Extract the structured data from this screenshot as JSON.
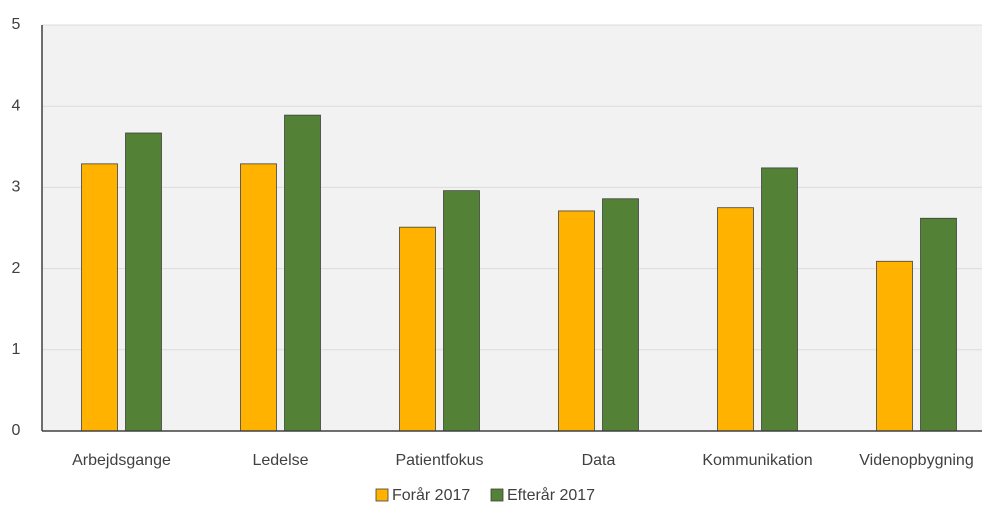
{
  "chart_data": {
    "type": "bar",
    "categories": [
      "Arbejdsgange",
      "Ledelse",
      "Patientfokus",
      "Data",
      "Kommunikation",
      "Videnopbygning"
    ],
    "series": [
      {
        "name": "Forår 2017",
        "color": "#ffb300",
        "values": [
          3.29,
          3.29,
          2.51,
          2.71,
          2.75,
          2.09
        ]
      },
      {
        "name": "Efterår 2017",
        "color": "#538135",
        "values": [
          3.67,
          3.89,
          2.96,
          2.86,
          3.24,
          2.62
        ]
      }
    ],
    "ylim": [
      0,
      5
    ],
    "yticks": [
      0,
      1,
      2,
      3,
      4,
      5
    ],
    "grid": true,
    "legend": "bottom"
  }
}
